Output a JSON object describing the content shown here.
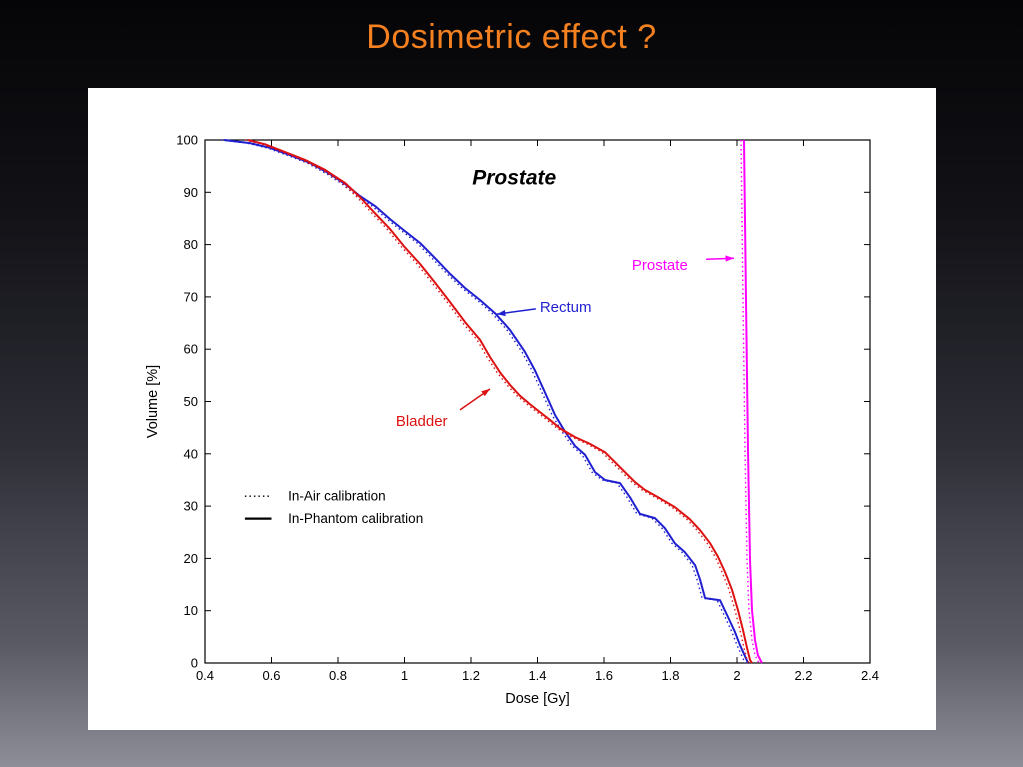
{
  "slide": {
    "title": "Dosimetric effect ?",
    "title_color": "#f4801f"
  },
  "chart_data": {
    "type": "line",
    "title": "Prostate",
    "title_at": [
      1.33,
      91.5
    ],
    "xlabel": "Dose [Gy]",
    "ylabel": "Volume [%]",
    "xlim": [
      0.4,
      2.4
    ],
    "ylim": [
      0,
      100
    ],
    "grid": false,
    "x_ticks": [
      {
        "v": 0.4,
        "label": "0.4"
      },
      {
        "v": 0.6,
        "label": "0.6"
      },
      {
        "v": 0.8,
        "label": "0.8"
      },
      {
        "v": 1.0,
        "label": "1"
      },
      {
        "v": 1.2,
        "label": "1.2"
      },
      {
        "v": 1.4,
        "label": "1.4"
      },
      {
        "v": 1.6,
        "label": "1.6"
      },
      {
        "v": 1.8,
        "label": "1.8"
      },
      {
        "v": 2.0,
        "label": "2"
      },
      {
        "v": 2.2,
        "label": "2.2"
      },
      {
        "v": 2.4,
        "label": "2.4"
      }
    ],
    "y_ticks": [
      {
        "v": 0,
        "label": "0"
      },
      {
        "v": 10,
        "label": "10"
      },
      {
        "v": 20,
        "label": "20"
      },
      {
        "v": 30,
        "label": "30"
      },
      {
        "v": 40,
        "label": "40"
      },
      {
        "v": 50,
        "label": "50"
      },
      {
        "v": 60,
        "label": "60"
      },
      {
        "v": 70,
        "label": "70"
      },
      {
        "v": 80,
        "label": "80"
      },
      {
        "v": 90,
        "label": "90"
      },
      {
        "v": 100,
        "label": "100"
      }
    ],
    "legend": {
      "position": "inside-left",
      "x_line": [
        0.52,
        0.6
      ],
      "x_text": 0.65,
      "rows_y": [
        31.9,
        27.6
      ],
      "items": [
        {
          "label": "In-Air calibration",
          "style": "dotted"
        },
        {
          "label": "In-Phantom calibration",
          "style": "solid"
        }
      ]
    },
    "calibration_variants": {
      "dotted_offset_gy": -0.009
    },
    "series": [
      {
        "name": "Rectum",
        "color": "#1f1fd0",
        "points": [
          [
            0.457,
            100
          ],
          [
            0.535,
            99.4
          ],
          [
            0.595,
            98.5
          ],
          [
            0.656,
            97.1
          ],
          [
            0.716,
            95.6
          ],
          [
            0.776,
            93.5
          ],
          [
            0.821,
            91.6
          ],
          [
            0.866,
            89.3
          ],
          [
            0.911,
            87.4
          ],
          [
            0.956,
            84.9
          ],
          [
            1.001,
            82.6
          ],
          [
            1.047,
            80.3
          ],
          [
            1.092,
            77.4
          ],
          [
            1.137,
            74.4
          ],
          [
            1.182,
            71.7
          ],
          [
            1.227,
            69.4
          ],
          [
            1.272,
            66.9
          ],
          [
            1.317,
            63.7
          ],
          [
            1.362,
            59.5
          ],
          [
            1.392,
            56.0
          ],
          [
            1.422,
            51.8
          ],
          [
            1.453,
            47.4
          ],
          [
            1.483,
            44.2
          ],
          [
            1.513,
            41.5
          ],
          [
            1.543,
            39.8
          ],
          [
            1.573,
            36.5
          ],
          [
            1.603,
            35.0
          ],
          [
            1.648,
            34.4
          ],
          [
            1.678,
            31.7
          ],
          [
            1.708,
            28.5
          ],
          [
            1.753,
            27.7
          ],
          [
            1.783,
            25.8
          ],
          [
            1.813,
            22.9
          ],
          [
            1.843,
            21.2
          ],
          [
            1.874,
            18.7
          ],
          [
            1.889,
            15.9
          ],
          [
            1.904,
            12.4
          ],
          [
            1.949,
            12.0
          ],
          [
            1.973,
            8.8
          ],
          [
            1.994,
            5.9
          ],
          [
            2.009,
            3.4
          ],
          [
            2.024,
            1.3
          ],
          [
            2.033,
            0
          ]
        ]
      },
      {
        "name": "Bladder",
        "color": "#dd1111",
        "points": [
          [
            0.529,
            100
          ],
          [
            0.58,
            99.2
          ],
          [
            0.641,
            97.7
          ],
          [
            0.701,
            96.2
          ],
          [
            0.761,
            94.3
          ],
          [
            0.821,
            91.8
          ],
          [
            0.866,
            89.1
          ],
          [
            0.911,
            86.0
          ],
          [
            0.956,
            83.0
          ],
          [
            1.001,
            79.5
          ],
          [
            1.047,
            76.3
          ],
          [
            1.092,
            72.7
          ],
          [
            1.137,
            69.0
          ],
          [
            1.182,
            65.2
          ],
          [
            1.227,
            61.8
          ],
          [
            1.257,
            58.5
          ],
          [
            1.287,
            55.6
          ],
          [
            1.317,
            53.2
          ],
          [
            1.347,
            51.1
          ],
          [
            1.377,
            49.5
          ],
          [
            1.407,
            48.0
          ],
          [
            1.437,
            46.5
          ],
          [
            1.467,
            44.9
          ],
          [
            1.513,
            43.2
          ],
          [
            1.558,
            41.9
          ],
          [
            1.603,
            40.3
          ],
          [
            1.633,
            38.4
          ],
          [
            1.663,
            36.5
          ],
          [
            1.693,
            34.6
          ],
          [
            1.723,
            33.1
          ],
          [
            1.768,
            31.5
          ],
          [
            1.813,
            29.8
          ],
          [
            1.858,
            27.5
          ],
          [
            1.889,
            25.4
          ],
          [
            1.919,
            22.9
          ],
          [
            1.943,
            20.3
          ],
          [
            1.964,
            17.4
          ],
          [
            1.985,
            14.0
          ],
          [
            2.003,
            10.1
          ],
          [
            2.018,
            6.3
          ],
          [
            2.03,
            2.9
          ],
          [
            2.039,
            0.6
          ],
          [
            2.045,
            0
          ]
        ]
      },
      {
        "name": "Prostate",
        "color": "#ff00ff",
        "points": [
          [
            2.021,
            100
          ],
          [
            2.027,
            69.4
          ],
          [
            2.033,
            40.7
          ],
          [
            2.039,
            19.7
          ],
          [
            2.045,
            10.1
          ],
          [
            2.054,
            4.4
          ],
          [
            2.063,
            1.5
          ],
          [
            2.075,
            0
          ]
        ]
      }
    ],
    "annotations": [
      {
        "text": "Prostate",
        "color": "#ff00ff",
        "text_at": [
          1.684,
          76.1
        ],
        "arrow_from": [
          1.907,
          77.2
        ],
        "arrow_to": [
          1.991,
          77.4
        ]
      },
      {
        "text": "Rectum",
        "color": "#1f1fd0",
        "text_at": [
          1.407,
          68.1
        ],
        "arrow_from": [
          1.395,
          67.7
        ],
        "arrow_to": [
          1.278,
          66.7
        ]
      },
      {
        "text": "Bladder",
        "color": "#dd1111",
        "text_at": [
          0.974,
          46.3
        ],
        "arrow_from": [
          1.167,
          48.4
        ],
        "arrow_to": [
          1.257,
          52.4
        ]
      }
    ]
  }
}
